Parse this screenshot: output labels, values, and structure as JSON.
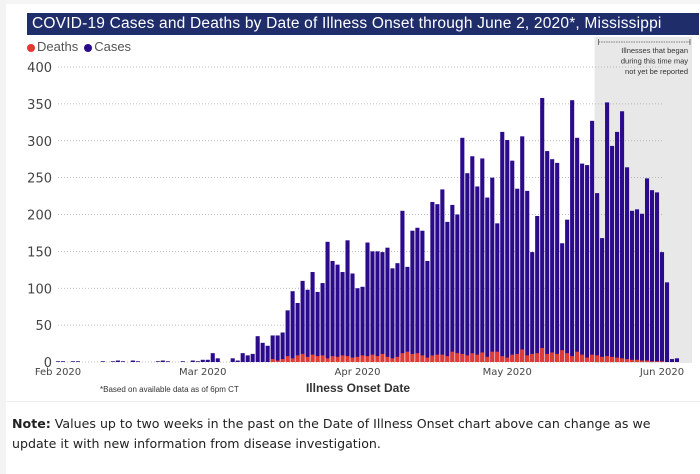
{
  "header": {
    "title": "COVID-19 Cases and Deaths by Date of Illness Onset through June 2, 2020*, Mississippi"
  },
  "legend": [
    {
      "label": "Deaths",
      "color": "#e03a32"
    },
    {
      "label": "Cases",
      "color": "#2b0a8c"
    }
  ],
  "annotation": {
    "line1": "Illnesses that began",
    "line2": "during this time may",
    "line3": "not yet be reported"
  },
  "footnote": "*Based on available data as of 6pm CT",
  "note": {
    "label": "Note:",
    "text": " Values up to two weeks in the past on the Date of Illness Onset chart above can change as we update it with new information from disease investigation."
  },
  "chart_data": {
    "type": "bar",
    "title": "COVID-19 Cases and Deaths by Date of Illness Onset through June 2, 2020*, Mississippi",
    "xlabel": "Illness Onset Date",
    "ylabel": "",
    "ylim": [
      0,
      400
    ],
    "yticks": [
      0,
      50,
      100,
      150,
      200,
      250,
      300,
      350,
      400
    ],
    "xticks": [
      "Feb 2020",
      "Mar 2020",
      "Apr 2020",
      "May 2020",
      "Jun 2020"
    ],
    "grid": true,
    "legend_position": "top-left",
    "stacked": "overlay",
    "start_date": "2020-02-01",
    "shaded_region": {
      "from": "2020-05-19",
      "to": "2020-06-02",
      "label": "Illnesses that began during this time may not yet be reported"
    },
    "series": [
      {
        "name": "Cases",
        "color": "#2b0a8c",
        "values": [
          1,
          1,
          0,
          1,
          1,
          0,
          0,
          0,
          0,
          1,
          0,
          1,
          2,
          1,
          0,
          2,
          1,
          0,
          0,
          0,
          1,
          2,
          1,
          0,
          0,
          1,
          0,
          2,
          1,
          3,
          3,
          12,
          5,
          0,
          0,
          5,
          2,
          12,
          9,
          11,
          35,
          26,
          22,
          36,
          36,
          40,
          70,
          96,
          80,
          110,
          98,
          122,
          95,
          107,
          163,
          137,
          132,
          122,
          165,
          120,
          100,
          102,
          162,
          150,
          150,
          149,
          155,
          127,
          134,
          205,
          129,
          178,
          182,
          178,
          137,
          217,
          214,
          234,
          190,
          213,
          200,
          304,
          256,
          279,
          238,
          276,
          223,
          250,
          188,
          312,
          301,
          273,
          235,
          306,
          232,
          149,
          198,
          358,
          286,
          275,
          270,
          161,
          193,
          355,
          304,
          269,
          267,
          327,
          229,
          168,
          352,
          293,
          312,
          340,
          264,
          205,
          207,
          201,
          249,
          233,
          230,
          149,
          108,
          4,
          5
        ]
      },
      {
        "name": "Deaths",
        "color": "#e03a32",
        "values": [
          0,
          0,
          0,
          0,
          0,
          0,
          0,
          0,
          0,
          0,
          0,
          0,
          0,
          0,
          0,
          0,
          0,
          0,
          0,
          0,
          0,
          0,
          0,
          0,
          0,
          0,
          0,
          0,
          0,
          0,
          0,
          0,
          0,
          0,
          0,
          0,
          0,
          0,
          0,
          0,
          0,
          0,
          0,
          4,
          2,
          4,
          8,
          5,
          9,
          11,
          7,
          10,
          8,
          9,
          5,
          8,
          7,
          9,
          8,
          6,
          7,
          9,
          8,
          10,
          8,
          11,
          7,
          5,
          7,
          12,
          14,
          11,
          12,
          9,
          6,
          9,
          10,
          10,
          8,
          14,
          12,
          11,
          9,
          12,
          10,
          13,
          7,
          14,
          14,
          8,
          6,
          10,
          11,
          17,
          9,
          11,
          12,
          19,
          11,
          13,
          11,
          16,
          12,
          8,
          14,
          10,
          6,
          10,
          9,
          7,
          8,
          7,
          6,
          5,
          4,
          3,
          3,
          2,
          2,
          1,
          1,
          1,
          0,
          0,
          0
        ]
      }
    ]
  }
}
